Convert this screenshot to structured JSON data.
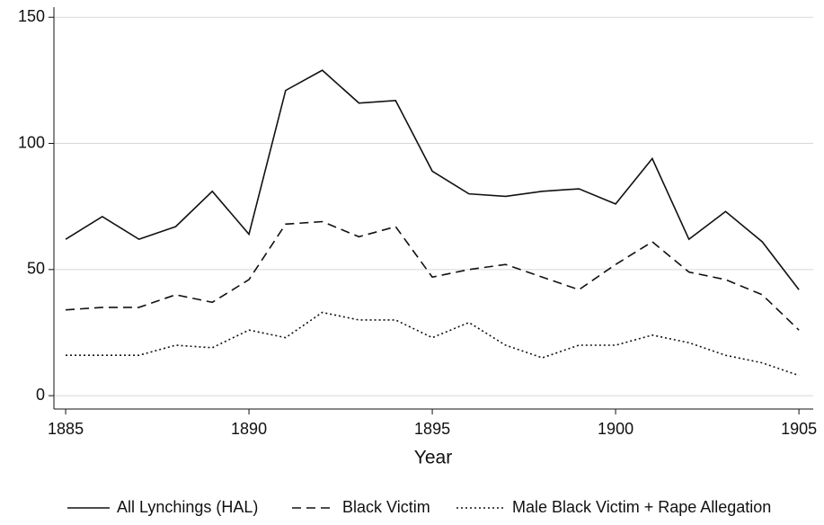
{
  "chart_data": {
    "type": "line",
    "x_label": "Year",
    "x": [
      1885,
      1886,
      1887,
      1888,
      1889,
      1890,
      1891,
      1892,
      1893,
      1894,
      1895,
      1896,
      1897,
      1898,
      1899,
      1900,
      1901,
      1902,
      1903,
      1904,
      1905
    ],
    "series": [
      {
        "name": "All Lynchings (HAL)",
        "color": "#111111",
        "dash": "solid",
        "values": [
          62,
          71,
          62,
          67,
          81,
          64,
          121,
          129,
          116,
          117,
          89,
          80,
          79,
          81,
          82,
          76,
          94,
          62,
          73,
          61,
          42
        ]
      },
      {
        "name": "Black Victim",
        "color": "#111111",
        "dash": "dashed",
        "values": [
          34,
          35,
          35,
          40,
          37,
          46,
          68,
          69,
          63,
          67,
          47,
          50,
          52,
          47,
          42,
          52,
          61,
          49,
          46,
          40,
          26
        ]
      },
      {
        "name": "Male Black Victim + Rape Allegation",
        "color": "#111111",
        "dash": "dotted",
        "values": [
          16,
          16,
          16,
          20,
          19,
          26,
          23,
          33,
          30,
          30,
          23,
          29,
          20,
          15,
          20,
          20,
          24,
          21,
          16,
          13,
          8
        ]
      }
    ],
    "xlim": [
      1884.68,
      1905.39
    ],
    "xticks": [
      1885,
      1890,
      1895,
      1900,
      1905
    ],
    "ylim": [
      -5.3,
      154
    ],
    "yticks": [
      0,
      50,
      100,
      150
    ],
    "grid": true,
    "legend": "bottom"
  }
}
